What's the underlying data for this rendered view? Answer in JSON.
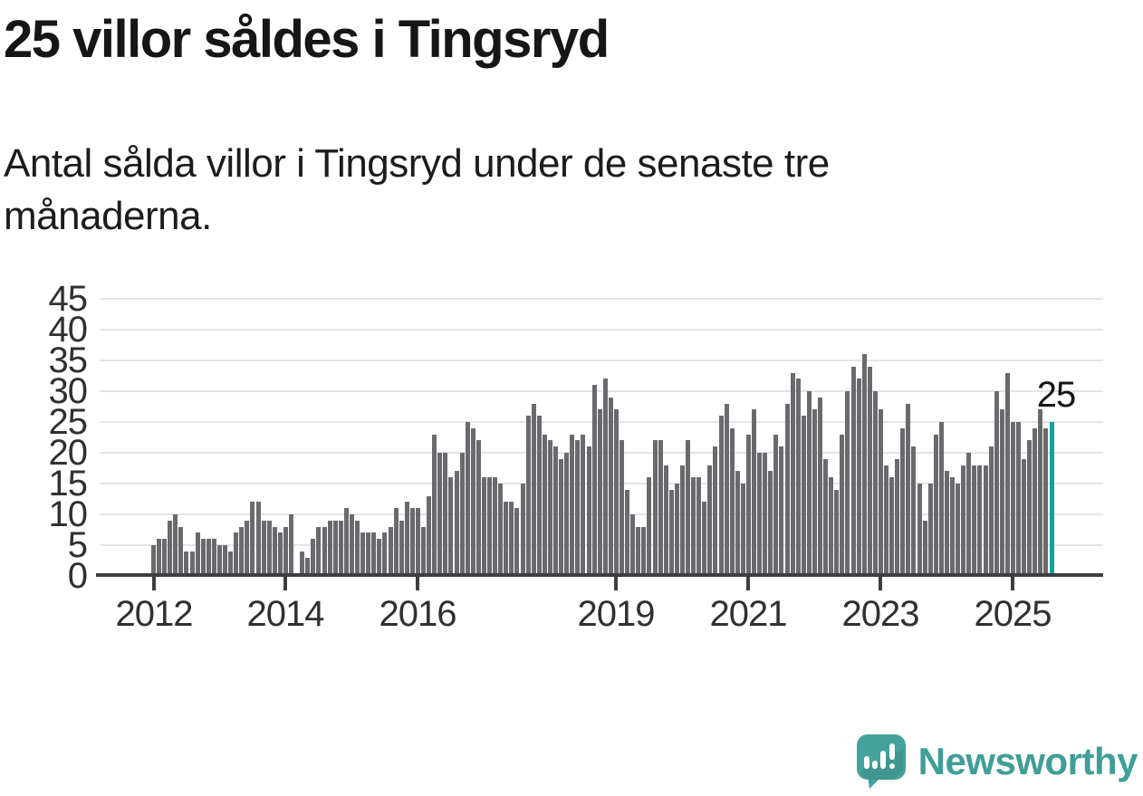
{
  "header": {
    "title": "25 villor såldes i Tingsryd",
    "subtitle": "Antal sålda villor i Tingsryd under de senaste tre månaderna."
  },
  "chart_data": {
    "type": "bar",
    "title": "25 villor såldes i Tingsryd",
    "description": "Antal sålda villor i Tingsryd under de senaste tre månaderna.",
    "frequency": "monthly",
    "values": [
      5,
      6,
      6,
      9,
      10,
      8,
      4,
      4,
      7,
      6,
      6,
      6,
      5,
      5,
      4,
      7,
      8,
      9,
      12,
      12,
      9,
      9,
      8,
      7,
      8,
      10,
      0,
      4,
      3,
      6,
      8,
      8,
      9,
      9,
      9,
      11,
      10,
      9,
      7,
      7,
      7,
      6,
      7,
      8,
      11,
      9,
      12,
      11,
      11,
      8,
      13,
      23,
      20,
      20,
      16,
      17,
      20,
      25,
      24,
      22,
      16,
      16,
      16,
      15,
      12,
      12,
      11,
      15,
      26,
      28,
      26,
      23,
      22,
      21,
      19,
      20,
      23,
      22,
      23,
      21,
      31,
      27,
      32,
      29,
      27,
      22,
      14,
      10,
      8,
      8,
      16,
      22,
      22,
      18,
      14,
      15,
      18,
      22,
      16,
      16,
      12,
      18,
      21,
      26,
      28,
      24,
      17,
      15,
      23,
      27,
      20,
      20,
      17,
      23,
      21,
      28,
      33,
      32,
      26,
      30,
      27,
      29,
      19,
      16,
      14,
      23,
      30,
      34,
      32,
      36,
      34,
      30,
      27,
      18,
      16,
      19,
      24,
      28,
      21,
      15,
      9,
      15,
      23,
      25,
      17,
      16,
      15,
      18,
      20,
      18,
      18,
      18,
      21,
      30,
      27,
      33,
      25,
      25,
      19,
      22,
      24,
      27,
      24,
      25
    ],
    "highlight": {
      "index": 163,
      "value": 25,
      "label": "25"
    },
    "yticks": [
      0,
      5,
      10,
      15,
      20,
      25,
      30,
      35,
      40,
      45
    ],
    "ylim": [
      0,
      45
    ],
    "xticks": [
      {
        "label": "2012",
        "month_index": 0
      },
      {
        "label": "2014",
        "month_index": 24
      },
      {
        "label": "2016",
        "month_index": 48
      },
      {
        "label": "2019",
        "month_index": 84
      },
      {
        "label": "2021",
        "month_index": 108
      },
      {
        "label": "2023",
        "month_index": 132
      },
      {
        "label": "2025",
        "month_index": 156
      }
    ],
    "grid": true,
    "legend": "none",
    "colors": {
      "bar": "#6a6a6e",
      "highlight": "#12a0a0",
      "gridline": "#e4e4e6",
      "axis": "#3e3e41",
      "tick_label": "#303034"
    }
  },
  "footer": {
    "brand": "Newsworthy",
    "brand_color": "#3f9e97",
    "logo_color": "#45a29b"
  }
}
